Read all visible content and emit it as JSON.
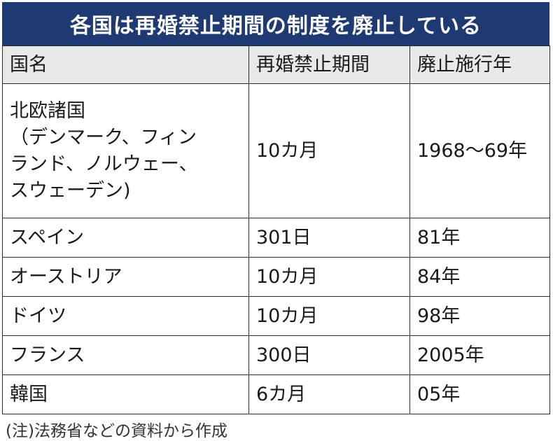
{
  "title": "各国は再婚禁止期間の制度を廃止している",
  "columns": [
    "国名",
    "再婚禁止期間",
    "廃止施行年"
  ],
  "rows": [
    {
      "country_lines": [
        "北欧諸国",
        "（デンマーク、フィン",
        "ランド、ノルウェー、",
        "スウェーデン)"
      ],
      "period": "10カ月",
      "year": "1968～69年"
    },
    {
      "country_lines": [
        "スペイン"
      ],
      "period": "301日",
      "year": "81年"
    },
    {
      "country_lines": [
        "オーストリア"
      ],
      "period": "10カ月",
      "year": "84年"
    },
    {
      "country_lines": [
        "ドイツ"
      ],
      "period": "10カ月",
      "year": "98年"
    },
    {
      "country_lines": [
        "フランス"
      ],
      "period": "300日",
      "year": "2005年"
    },
    {
      "country_lines": [
        "韓国"
      ],
      "period": "6カ月",
      "year": "05年"
    }
  ],
  "note": "(注)法務省などの資料から作成",
  "colors": {
    "header_bg": "#1f3a73",
    "column_header_bg": "#e9e9e9"
  }
}
